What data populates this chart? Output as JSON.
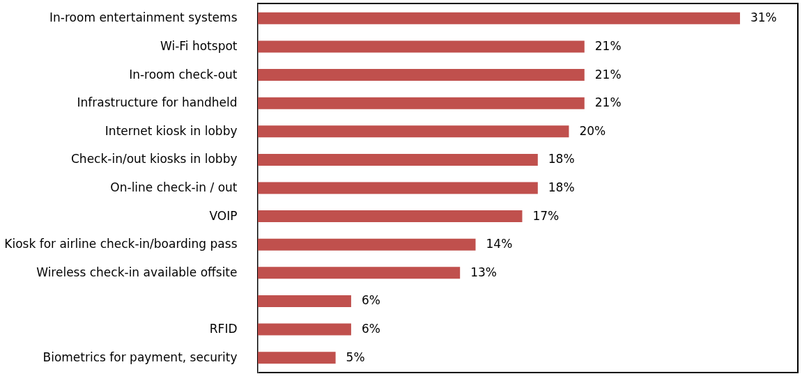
{
  "chart_data": {
    "type": "bar",
    "orientation": "horizontal",
    "categories": [
      "In-room entertainment systems",
      "Wi-Fi hotspot",
      "In-room check-out",
      "Infrastructure for handheld",
      "Internet kiosk in lobby",
      "Check-in/out kiosks in lobby",
      "On-line check-in / out",
      "VOIP",
      "Kiosk for airline check-in/boarding pass",
      "Wireless check-in available offsite",
      null,
      "RFID",
      "Biometrics for payment, security"
    ],
    "values": [
      31,
      21,
      21,
      21,
      20,
      18,
      18,
      17,
      14,
      13,
      6,
      6,
      5
    ],
    "value_labels": [
      "31%",
      "21%",
      "21%",
      "21%",
      "20%",
      "18%",
      "18%",
      "17%",
      "14%",
      "13%",
      "6%",
      "6%",
      "5%"
    ],
    "color": "#c0504d"
  }
}
